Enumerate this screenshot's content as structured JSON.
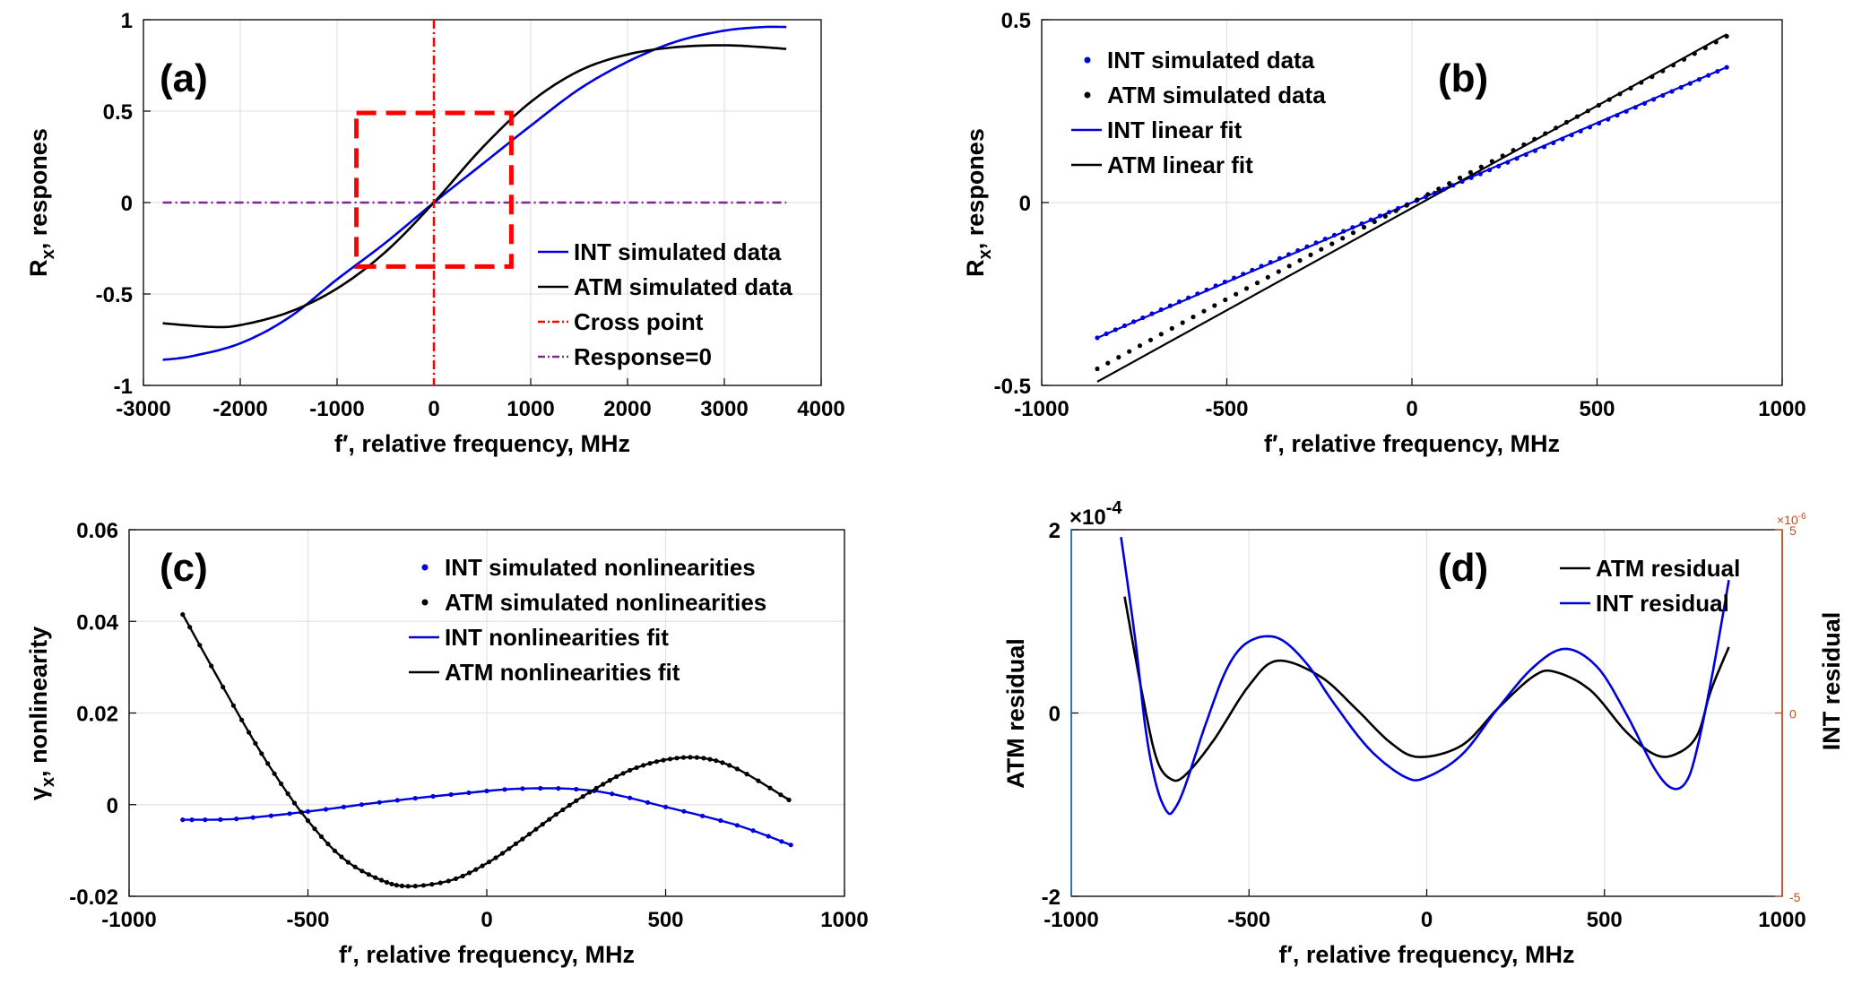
{
  "colors": {
    "int": "#0000dd",
    "atm": "#000000",
    "cross": "#ff0000",
    "zero": "#7a2a8a",
    "grid": "#e3e3e3",
    "left_axis_d": "#0b6fb5",
    "right_axis_d": "#c0501f"
  },
  "chart_data": [
    {
      "type": "line",
      "panel_label": "(a)",
      "xlabel": "f′, relative frequency, MHz",
      "ylabel_main": "R",
      "ylabel_sub": "x",
      "ylabel_rest": ", respones",
      "xlim": [
        -3000,
        4000
      ],
      "ylim": [
        -1,
        1
      ],
      "xticks": [
        -3000,
        -2000,
        -1000,
        0,
        1000,
        2000,
        3000,
        4000
      ],
      "yticks": [
        -1,
        -0.5,
        0,
        0.5,
        1
      ],
      "xtick_labels": [
        "-3000",
        "-2000",
        "-1000",
        "0",
        "1000",
        "2000",
        "3000",
        "4000"
      ],
      "ytick_labels": [
        "-1",
        "-0.5",
        "0",
        "0.5",
        "1"
      ],
      "legend_placement": "lower-right",
      "series": [
        {
          "name": "INT simulated data",
          "style": "line",
          "color": "#0000dd",
          "x": [
            -2800,
            -2500,
            -2000,
            -1500,
            -1000,
            -500,
            0,
            500,
            1000,
            1500,
            2000,
            2500,
            3000,
            3400,
            3640
          ],
          "y": [
            -0.86,
            -0.84,
            -0.77,
            -0.63,
            -0.42,
            -0.22,
            0.0,
            0.21,
            0.42,
            0.62,
            0.77,
            0.88,
            0.94,
            0.96,
            0.96
          ]
        },
        {
          "name": "ATM simulated data",
          "style": "line",
          "color": "#000000",
          "x": [
            -2800,
            -2300,
            -2000,
            -1500,
            -1000,
            -500,
            0,
            500,
            1000,
            1500,
            2000,
            2500,
            3000,
            3400,
            3640
          ],
          "y": [
            -0.66,
            -0.68,
            -0.67,
            -0.6,
            -0.47,
            -0.27,
            0.0,
            0.3,
            0.55,
            0.72,
            0.81,
            0.85,
            0.86,
            0.85,
            0.84
          ]
        },
        {
          "name": "Cross point",
          "style": "dashdot-vertical",
          "color": "#ff0000",
          "x": [
            0,
            0
          ],
          "y": [
            -1,
            1
          ]
        },
        {
          "name": "Response=0",
          "style": "dashdot",
          "color": "#7a2a8a",
          "x": [
            -2800,
            3640
          ],
          "y": [
            0,
            0
          ]
        }
      ],
      "box": {
        "x": [
          -800,
          800
        ],
        "y": [
          -0.35,
          0.49
        ],
        "color": "#ff0000"
      }
    },
    {
      "type": "scatter",
      "panel_label": "(b)",
      "xlabel": "f′, relative frequency, MHz",
      "ylabel_main": "R",
      "ylabel_sub": "x",
      "ylabel_rest": ", respones",
      "xlim": [
        -1000,
        1000
      ],
      "ylim": [
        -0.5,
        0.5
      ],
      "xticks": [
        -1000,
        -500,
        0,
        500,
        1000
      ],
      "yticks": [
        -0.5,
        0,
        0.5
      ],
      "xtick_labels": [
        "-1000",
        "-500",
        "0",
        "500",
        "1000"
      ],
      "ytick_labels": [
        "-0.5",
        "0",
        "0.5"
      ],
      "legend_placement": "top-left",
      "series": [
        {
          "name": "INT simulated data",
          "style": "dots",
          "color": "#0000dd",
          "slope": 0.000435,
          "intercept": 0.0,
          "wiggle": 0.003,
          "x_range": [
            -850,
            850
          ],
          "n": 70
        },
        {
          "name": "ATM simulated data",
          "style": "dots",
          "color": "#000000",
          "slope": 0.000535,
          "intercept": 0.0,
          "wiggle": 0.004,
          "x_range": [
            -850,
            850
          ],
          "n": 60
        },
        {
          "name": "INT linear fit",
          "style": "line",
          "color": "#0000dd",
          "x": [
            -850,
            850
          ],
          "y": [
            -0.37,
            0.37
          ]
        },
        {
          "name": "ATM linear fit",
          "style": "line",
          "color": "#000000",
          "x": [
            -850,
            850
          ],
          "y": [
            -0.49,
            0.46
          ]
        }
      ]
    },
    {
      "type": "line",
      "panel_label": "(c)",
      "xlabel": "f′, relative frequency, MHz",
      "ylabel_main": "γ",
      "ylabel_sub": "x",
      "ylabel_rest": ", nonlinearity",
      "xlim": [
        -1000,
        1000
      ],
      "ylim": [
        -0.02,
        0.06
      ],
      "xticks": [
        -1000,
        -500,
        0,
        500,
        1000
      ],
      "yticks": [
        -0.02,
        0,
        0.02,
        0.04,
        0.06
      ],
      "xtick_labels": [
        "-1000",
        "-500",
        "0",
        "500",
        "1000"
      ],
      "ytick_labels": [
        "-0.02",
        "0",
        "0.02",
        "0.04",
        "0.06"
      ],
      "legend_placement": "top-right",
      "series": [
        {
          "name": "INT simulated nonlinearities",
          "style": "dots",
          "color": "#0000dd",
          "x": [
            -850,
            -700,
            -500,
            -300,
            -100,
            100,
            300,
            500,
            700,
            850
          ],
          "y": [
            -0.0033,
            -0.0031,
            -0.0015,
            0.0005,
            0.0022,
            0.0035,
            0.003,
            -0.0005,
            -0.0045,
            -0.0088
          ]
        },
        {
          "name": "ATM simulated nonlinearities",
          "style": "dots",
          "color": "#000000",
          "x": [
            -850,
            -700,
            -600,
            -500,
            -400,
            -300,
            -220,
            -100,
            0,
            100,
            200,
            300,
            400,
            500,
            600,
            700,
            850
          ],
          "y": [
            0.0415,
            0.0205,
            0.0075,
            -0.0035,
            -0.0118,
            -0.0163,
            -0.0178,
            -0.0165,
            -0.0128,
            -0.0075,
            -0.0018,
            0.0033,
            0.0075,
            0.0098,
            0.0102,
            0.0078,
            0.0008
          ]
        },
        {
          "name": "INT nonlinearities fit",
          "style": "line",
          "color": "#0000dd",
          "ref": 0
        },
        {
          "name": "ATM nonlinearities fit",
          "style": "line",
          "color": "#000000",
          "ref": 1
        }
      ]
    },
    {
      "type": "line",
      "panel_label": "(d)",
      "xlabel": "f′, relative frequency, MHz",
      "ylabel": "ATM residual",
      "ylabel_right": "INT residual",
      "xlim": [
        -1000,
        1000
      ],
      "ylim": [
        -2,
        2
      ],
      "ylim_right": [
        -5,
        5
      ],
      "xticks": [
        -1000,
        -500,
        0,
        500,
        1000
      ],
      "yticks": [
        -2,
        0,
        2
      ],
      "yticks_right": [
        -5,
        0,
        5
      ],
      "xtick_labels": [
        "-1000",
        "-500",
        "0",
        "500",
        "1000"
      ],
      "ytick_labels": [
        "-2",
        "0",
        "2"
      ],
      "ytick_labels_right": [
        "-5",
        "0",
        "5"
      ],
      "exponent_left_base": "×10",
      "exponent_left_power": "-4",
      "exponent_right_base": "×10",
      "exponent_right_power": "-6",
      "legend_placement": "top-right",
      "series": [
        {
          "name": "ATM residual",
          "style": "line",
          "color": "#000000",
          "x": [
            -850,
            -800,
            -760,
            -720,
            -680,
            -600,
            -500,
            -420,
            -300,
            -200,
            -100,
            -20,
            100,
            200,
            300,
            360,
            460,
            560,
            640,
            700,
            760,
            800,
            850
          ],
          "y": [
            1.27,
            0.2,
            -0.5,
            -0.72,
            -0.68,
            -0.3,
            0.3,
            0.57,
            0.4,
            0.05,
            -0.33,
            -0.48,
            -0.35,
            0.05,
            0.4,
            0.45,
            0.25,
            -0.2,
            -0.45,
            -0.45,
            -0.25,
            0.25,
            0.72
          ]
        },
        {
          "name": "INT residual",
          "style": "line",
          "color": "#0000dd",
          "x": [
            -860,
            -820,
            -790,
            -760,
            -730,
            -710,
            -680,
            -620,
            -560,
            -500,
            -420,
            -340,
            -260,
            -160,
            -60,
            0,
            100,
            200,
            300,
            390,
            480,
            560,
            640,
            690,
            730,
            760,
            800,
            830,
            850
          ],
          "y": [
            1.92,
            0.8,
            -0.2,
            -0.8,
            -1.08,
            -1.05,
            -0.8,
            -0.1,
            0.5,
            0.78,
            0.82,
            0.55,
            0.1,
            -0.4,
            -0.7,
            -0.7,
            -0.45,
            0.05,
            0.5,
            0.7,
            0.5,
            0.0,
            -0.6,
            -0.82,
            -0.75,
            -0.4,
            0.35,
            1.0,
            1.45
          ]
        }
      ]
    }
  ]
}
